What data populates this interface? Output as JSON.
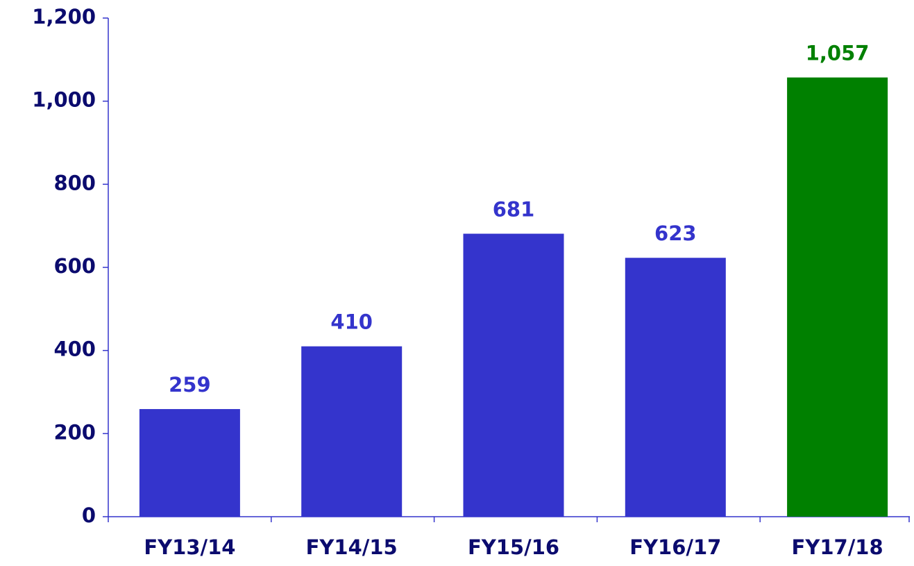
{
  "chart_data": {
    "type": "bar",
    "categories": [
      "FY13/14",
      "FY14/15",
      "FY15/16",
      "FY16/17",
      "FY17/18"
    ],
    "values": [
      259,
      410,
      681,
      623,
      1057
    ],
    "value_labels": [
      "259",
      "410",
      "681",
      "623",
      "1,057"
    ],
    "colors": [
      "#3434cc",
      "#3434cc",
      "#3434cc",
      "#3434cc",
      "#008000"
    ],
    "ylim": [
      0,
      1200
    ],
    "yticks": [
      0,
      200,
      400,
      600,
      800,
      {
        "value": 1000,
        "label": "1,000"
      },
      {
        "value": 1200,
        "label": "1,200"
      }
    ],
    "grid": false
  }
}
